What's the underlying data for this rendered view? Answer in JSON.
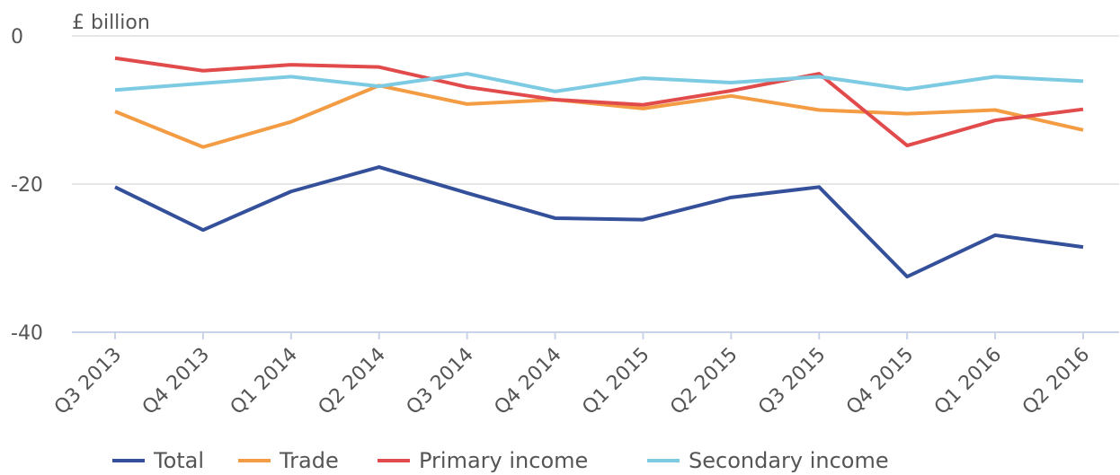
{
  "chart_data": {
    "type": "line",
    "y_label": "£ billion",
    "categories": [
      "Q3 2013",
      "Q4 2013",
      "Q1 2014",
      "Q2 2014",
      "Q3 2014",
      "Q4 2014",
      "Q1 2015",
      "Q2 2015",
      "Q3 2015",
      "Q4 2015",
      "Q1 2016",
      "Q2 2016"
    ],
    "series": [
      {
        "name": "Total",
        "color": "#34509a",
        "values": [
          -20.4,
          -26.2,
          -21.0,
          -17.7,
          -21.2,
          -24.6,
          -24.8,
          -21.8,
          -20.4,
          -32.5,
          -26.9,
          -28.5
        ]
      },
      {
        "name": "Trade",
        "color": "#f39c43",
        "values": [
          -10.2,
          -15.0,
          -11.6,
          -6.7,
          -9.2,
          -8.6,
          -9.8,
          -8.1,
          -10.0,
          -10.5,
          -10.0,
          -12.7
        ]
      },
      {
        "name": "Primary income",
        "color": "#e14b4b",
        "values": [
          -3.0,
          -4.7,
          -3.9,
          -4.2,
          -6.9,
          -8.6,
          -9.3,
          -7.4,
          -5.1,
          -14.8,
          -11.4,
          -9.9
        ]
      },
      {
        "name": "Secondary income",
        "color": "#7dcbe3",
        "values": [
          -7.3,
          -6.4,
          -5.5,
          -6.8,
          -5.1,
          -7.5,
          -5.7,
          -6.3,
          -5.5,
          -7.2,
          -5.5,
          -6.1
        ]
      }
    ],
    "ylim": [
      -40,
      0
    ],
    "yticks": [
      0,
      -20,
      -40
    ],
    "grid": true
  }
}
